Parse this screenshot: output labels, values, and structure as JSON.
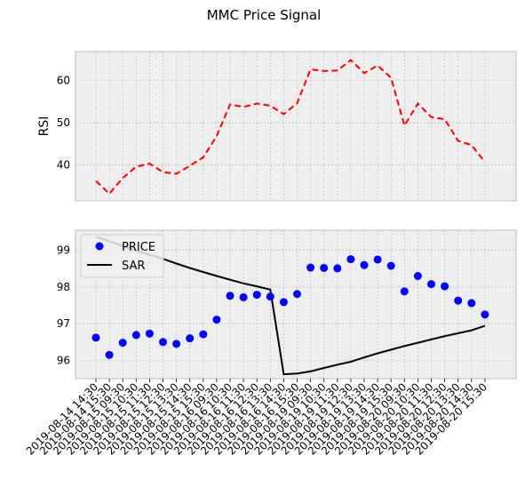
{
  "chart_data": [
    {
      "type": "line",
      "title": "MMC Price Signal",
      "ylabel": "RSI",
      "ylim": [
        31.5,
        66.8
      ],
      "yticks": [
        40,
        50,
        60
      ],
      "grid": true,
      "series": [
        {
          "name": "",
          "color": "#ff0000",
          "style": "dashed",
          "values": [
            36.2,
            33.2,
            36.9,
            39.6,
            40.3,
            38.3,
            37.9,
            39.8,
            41.8,
            46.8,
            54.3,
            53.7,
            54.5,
            54.0,
            52.0,
            54.6,
            62.6,
            62.2,
            62.3,
            64.8,
            61.7,
            63.5,
            60.6,
            49.3,
            54.5,
            51.3,
            50.8,
            45.7,
            44.7,
            40.7
          ]
        }
      ]
    },
    {
      "type": "scatter",
      "ylim": [
        95.5,
        99.55
      ],
      "yticks": [
        96,
        97,
        98,
        99
      ],
      "grid": true,
      "legend": "top-left",
      "x_labels": [
        "2019-08-14 14:30",
        "2019-08-14 15:30",
        "2019-08-15 09:30",
        "2019-08-15 10:30",
        "2019-08-15 11:30",
        "2019-08-15 12:30",
        "2019-08-15 13:30",
        "2019-08-15 14:30",
        "2019-08-15 15:30",
        "2019-08-16 09:30",
        "2019-08-16 10:30",
        "2019-08-16 11:30",
        "2019-08-16 12:30",
        "2019-08-16 13:30",
        "2019-08-16 14:30",
        "2019-08-16 15:30",
        "2019-08-19 09:30",
        "2019-08-19 10:30",
        "2019-08-19 11:30",
        "2019-08-19 12:30",
        "2019-08-19 13:30",
        "2019-08-19 14:30",
        "2019-08-19 15:30",
        "2019-08-20 09:30",
        "2019-08-20 10:30",
        "2019-08-20 11:30",
        "2019-08-20 12:30",
        "2019-08-20 13:30",
        "2019-08-20 14:30",
        "2019-08-20 15:30"
      ],
      "series": [
        {
          "name": "PRICE",
          "color": "#0000ff",
          "values": [
            96.62,
            96.15,
            96.48,
            96.69,
            96.73,
            96.5,
            96.45,
            96.6,
            96.71,
            97.11,
            97.76,
            97.72,
            97.79,
            97.74,
            97.59,
            97.81,
            98.53,
            98.52,
            98.51,
            98.76,
            98.6,
            98.75,
            98.58,
            97.88,
            98.3,
            98.08,
            98.02,
            97.63,
            97.56,
            97.25
          ]
        },
        {
          "name": "SAR",
          "color": "#000000",
          "values": [
            99.37,
            99.25,
            99.12,
            98.99,
            98.88,
            98.77,
            98.64,
            98.52,
            98.41,
            98.3,
            98.2,
            98.1,
            98.02,
            97.93,
            95.62,
            95.64,
            95.7,
            95.79,
            95.88,
            95.96,
            96.08,
            96.19,
            96.29,
            96.39,
            96.48,
            96.57,
            96.66,
            96.74,
            96.82,
            96.94
          ]
        }
      ]
    }
  ]
}
